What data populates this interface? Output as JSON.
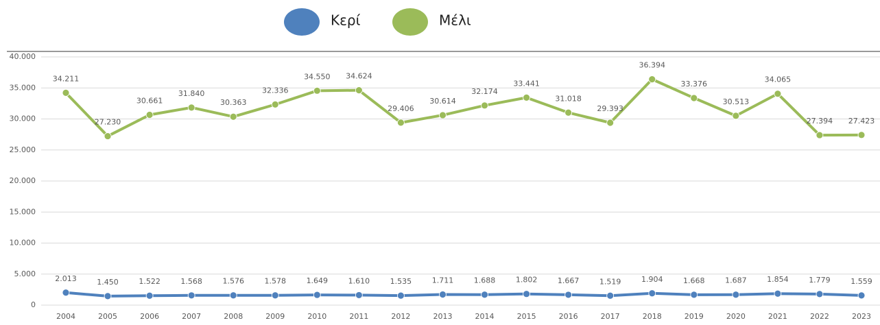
{
  "chart_data": {
    "type": "line",
    "categories": [
      "2004",
      "2005",
      "2006",
      "2007",
      "2008",
      "2009",
      "2010",
      "2011",
      "2012",
      "2013",
      "2014",
      "2015",
      "2016",
      "2017",
      "2018",
      "2019",
      "2020",
      "2021",
      "2022",
      "2023"
    ],
    "series": [
      {
        "name": "Κερί",
        "color": "#4f81bd",
        "values": [
          2013,
          1450,
          1522,
          1568,
          1576,
          1578,
          1649,
          1610,
          1535,
          1711,
          1688,
          1802,
          1667,
          1519,
          1904,
          1668,
          1687,
          1854,
          1779,
          1559
        ],
        "value_labels": [
          "2.013",
          "1.450",
          "1.522",
          "1.568",
          "1.576",
          "1.578",
          "1.649",
          "1.610",
          "1.535",
          "1.711",
          "1.688",
          "1.802",
          "1.667",
          "1.519",
          "1.904",
          "1.668",
          "1.687",
          "1.854",
          "1.779",
          "1.559"
        ]
      },
      {
        "name": "Μέλι",
        "color": "#9bbb59",
        "values": [
          34211,
          27230,
          30661,
          31840,
          30363,
          32336,
          34550,
          34624,
          29406,
          30614,
          32174,
          33441,
          31018,
          29393,
          36394,
          33376,
          30513,
          34065,
          27394,
          27423
        ],
        "value_labels": [
          "34.211",
          "27.230",
          "30.661",
          "31.840",
          "30.363",
          "32.336",
          "34.550",
          "34.624",
          "29.406",
          "30.614",
          "32.174",
          "33.441",
          "31.018",
          "29.393",
          "36.394",
          "33.376",
          "30.513",
          "34.065",
          "27.394",
          "27.423"
        ]
      }
    ],
    "ylim": [
      0,
      40000
    ],
    "yticks": [
      0,
      {
        "value": 5000,
        "label": "5.000"
      },
      {
        "value": 10000,
        "label": "10.000"
      },
      {
        "value": 15000,
        "label": "15.000"
      },
      {
        "value": 20000,
        "label": "20.000"
      },
      {
        "value": 25000,
        "label": "25.000"
      },
      {
        "value": 30000,
        "label": "30.000"
      },
      {
        "value": 35000,
        "label": "35.000"
      },
      {
        "value": 40000,
        "label": "40.000"
      }
    ],
    "grid": true,
    "legend": "top"
  }
}
